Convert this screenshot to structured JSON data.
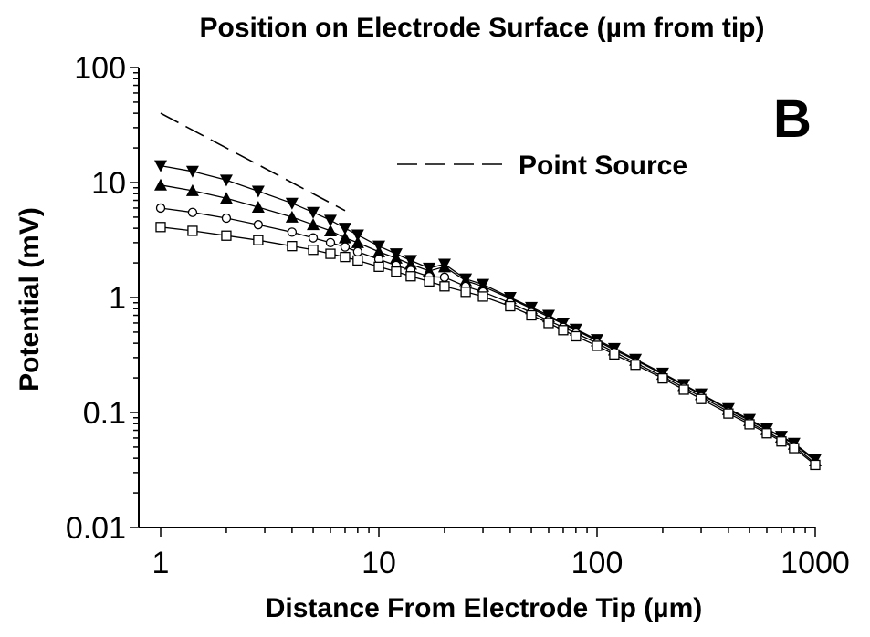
{
  "chart_data": {
    "type": "line",
    "title": "Position on Electrode Surface (µm from tip)",
    "xlabel": "Distance From Electrode Tip (µm)",
    "ylabel": "Potential (mV)",
    "panel_label": "B",
    "x_scale": "log",
    "y_scale": "log",
    "xlim": [
      1,
      1000
    ],
    "ylim": [
      0.01,
      100
    ],
    "x_ticks": [
      1,
      10,
      100,
      1000
    ],
    "x_tick_labels": [
      "1",
      "10",
      "100",
      "1000"
    ],
    "y_ticks": [
      0.01,
      0.1,
      1,
      10,
      100
    ],
    "y_tick_labels": [
      "0.01",
      "0.1",
      "1",
      "10",
      "100"
    ],
    "grid": false,
    "legend_position": "top-right",
    "x": [
      1,
      1.4,
      2,
      2.8,
      4,
      5,
      6,
      7,
      8,
      10,
      12,
      14,
      17,
      20,
      25,
      30,
      40,
      50,
      60,
      70,
      80,
      100,
      120,
      150,
      200,
      250,
      300,
      400,
      500,
      600,
      700,
      800,
      1000
    ],
    "series": [
      {
        "name": "Point Source",
        "style": "dashed",
        "marker": "none",
        "x": [
          1,
          7
        ],
        "values": [
          40,
          5.7
        ]
      },
      {
        "marker": "triangle-down",
        "values": [
          14,
          12.5,
          10.5,
          8.4,
          6.6,
          5.5,
          4.7,
          4.0,
          3.5,
          2.8,
          2.4,
          2.1,
          1.8,
          1.95,
          1.45,
          1.3,
          1.0,
          0.82,
          0.7,
          0.6,
          0.53,
          0.43,
          0.36,
          0.29,
          0.22,
          0.175,
          0.145,
          0.108,
          0.087,
          0.072,
          0.062,
          0.054,
          0.039
        ]
      },
      {
        "marker": "triangle-up",
        "values": [
          9.5,
          8.5,
          7.3,
          6.1,
          5.0,
          4.3,
          3.8,
          3.3,
          3.0,
          2.5,
          2.2,
          1.95,
          1.7,
          1.85,
          1.4,
          1.25,
          0.98,
          0.8,
          0.68,
          0.59,
          0.52,
          0.42,
          0.35,
          0.285,
          0.215,
          0.172,
          0.143,
          0.106,
          0.085,
          0.071,
          0.061,
          0.053,
          0.038
        ]
      },
      {
        "marker": "circle-open",
        "values": [
          6.0,
          5.5,
          4.9,
          4.3,
          3.7,
          3.3,
          3.0,
          2.75,
          2.5,
          2.15,
          1.9,
          1.72,
          1.52,
          1.5,
          1.25,
          1.12,
          0.9,
          0.74,
          0.63,
          0.55,
          0.49,
          0.4,
          0.335,
          0.27,
          0.205,
          0.165,
          0.137,
          0.102,
          0.082,
          0.068,
          0.058,
          0.051,
          0.036
        ]
      },
      {
        "marker": "square-open",
        "values": [
          4.1,
          3.8,
          3.45,
          3.15,
          2.8,
          2.6,
          2.4,
          2.25,
          2.1,
          1.85,
          1.68,
          1.53,
          1.38,
          1.25,
          1.12,
          1.02,
          0.84,
          0.7,
          0.6,
          0.52,
          0.46,
          0.38,
          0.32,
          0.26,
          0.198,
          0.158,
          0.131,
          0.098,
          0.079,
          0.066,
          0.056,
          0.049,
          0.035
        ]
      }
    ]
  }
}
